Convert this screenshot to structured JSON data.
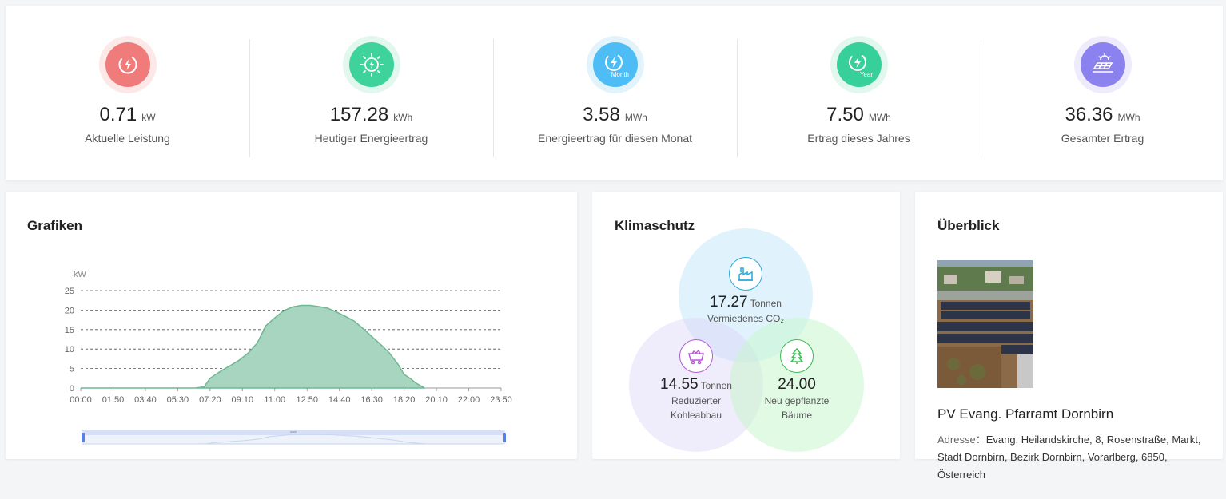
{
  "kpis": [
    {
      "value": "0.71",
      "unit": "kW",
      "label": "Aktuelle Leistung",
      "icon": "power-icon",
      "color": "#f07b7b",
      "ring": "#fde8e8"
    },
    {
      "value": "157.28",
      "unit": "kWh",
      "label": "Heutiger Energieertrag",
      "icon": "sun-power-icon",
      "color": "#3dd39b",
      "ring": "#e2f7ee"
    },
    {
      "value": "3.58",
      "unit": "MWh",
      "label": "Energieertrag für diesen Monat",
      "icon": "month-power-icon",
      "icon_text": "Month",
      "color": "#4fbdf5",
      "ring": "#e2f3fc"
    },
    {
      "value": "7.50",
      "unit": "MWh",
      "label": "Ertrag dieses Jahres",
      "icon": "year-power-icon",
      "icon_text": "Year",
      "color": "#37cf9a",
      "ring": "#e2f7ee"
    },
    {
      "value": "36.36",
      "unit": "MWh",
      "label": "Gesamter Ertrag",
      "icon": "solar-panel-icon",
      "color": "#8b82f0",
      "ring": "#edebfc"
    }
  ],
  "chart_card": {
    "title": "Grafiken"
  },
  "chart_data": {
    "type": "area",
    "ylabel": "kW",
    "ylim": [
      0,
      25
    ],
    "yticks": [
      0,
      5,
      10,
      15,
      20,
      25
    ],
    "xlim": [
      "00:00",
      "23:50"
    ],
    "xticks": [
      "00:00",
      "01:50",
      "03:40",
      "05:30",
      "07:20",
      "09:10",
      "11:00",
      "12:50",
      "14:40",
      "16:30",
      "18:20",
      "20:10",
      "22:00",
      "23:50"
    ],
    "grid": true,
    "x": [
      "00:00",
      "06:30",
      "07:00",
      "07:20",
      "07:40",
      "08:00",
      "08:30",
      "09:00",
      "09:30",
      "10:00",
      "10:30",
      "11:00",
      "11:30",
      "12:00",
      "12:30",
      "13:00",
      "13:30",
      "14:00",
      "14:30",
      "15:00",
      "15:30",
      "16:00",
      "16:30",
      "17:00",
      "17:30",
      "18:00",
      "18:20",
      "18:40",
      "19:00",
      "19:20",
      "19:30"
    ],
    "values": [
      0,
      0,
      0.3,
      2.5,
      3.5,
      4.5,
      5.8,
      7.2,
      9.0,
      11.5,
      16.0,
      18.0,
      19.8,
      20.8,
      21.2,
      21.2,
      20.9,
      20.5,
      19.5,
      18.4,
      17.2,
      15.3,
      13.2,
      11.2,
      9.0,
      6.0,
      3.5,
      2.5,
      1.3,
      0.4,
      0
    ]
  },
  "climate": {
    "title": "Klimaschutz",
    "co2": {
      "value": "17.27",
      "unit": "Tonnen",
      "label": "Vermiedenes CO₂",
      "icon": "factory-icon",
      "color": "#2aa8d8"
    },
    "coal": {
      "value": "14.55",
      "unit": "Tonnen",
      "label_line1": "Reduzierter",
      "label_line2": "Kohleabbau",
      "icon": "coal-cart-icon",
      "color": "#b35bd6"
    },
    "trees": {
      "value": "24.00",
      "label_line1": "Neu gepflanzte",
      "label_line2": "Bäume",
      "icon": "tree-icon",
      "color": "#3bbf55"
    }
  },
  "overview": {
    "title": "Überblick",
    "site_name": "PV Evang. Pfarramt Dornbirn",
    "address_label": "Adresse：",
    "address": "Evang. Heilandskirche, 8, Rosenstraße, Markt, Stadt Dornbirn, Bezirk Dornbirn, Vorarlberg, 6850, Österreich"
  }
}
